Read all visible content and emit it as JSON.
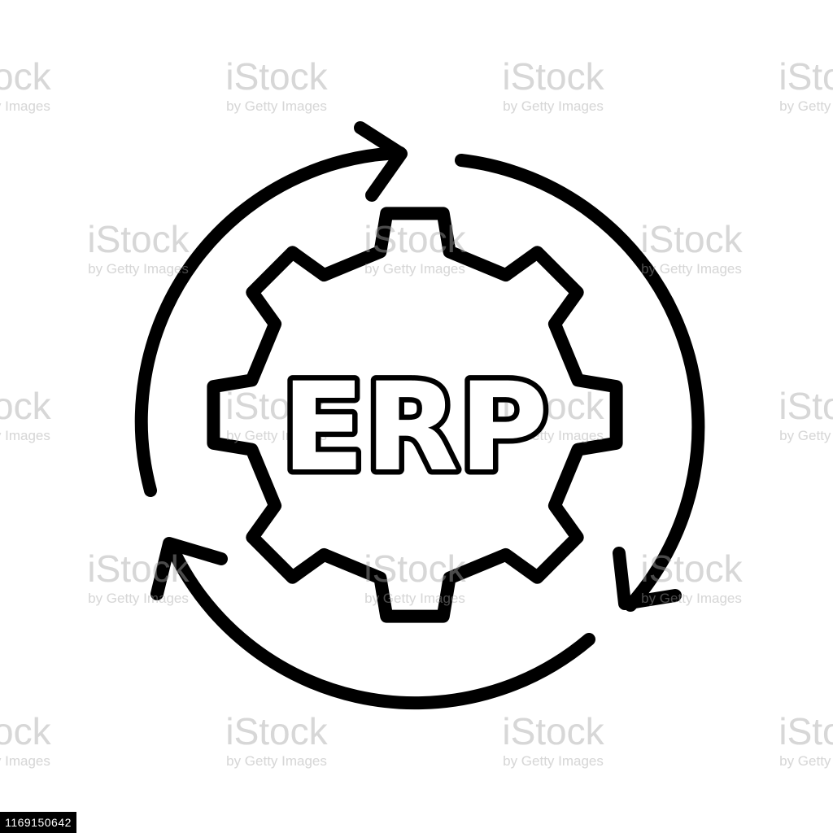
{
  "icon": {
    "name": "erp-cycle-gear-icon",
    "label": "ERP",
    "stroke_color": "#000000",
    "background_color": "#ffffff"
  },
  "watermark": {
    "main": "iStock",
    "sub": "by Getty Images"
  },
  "stock_id": "1169150642"
}
